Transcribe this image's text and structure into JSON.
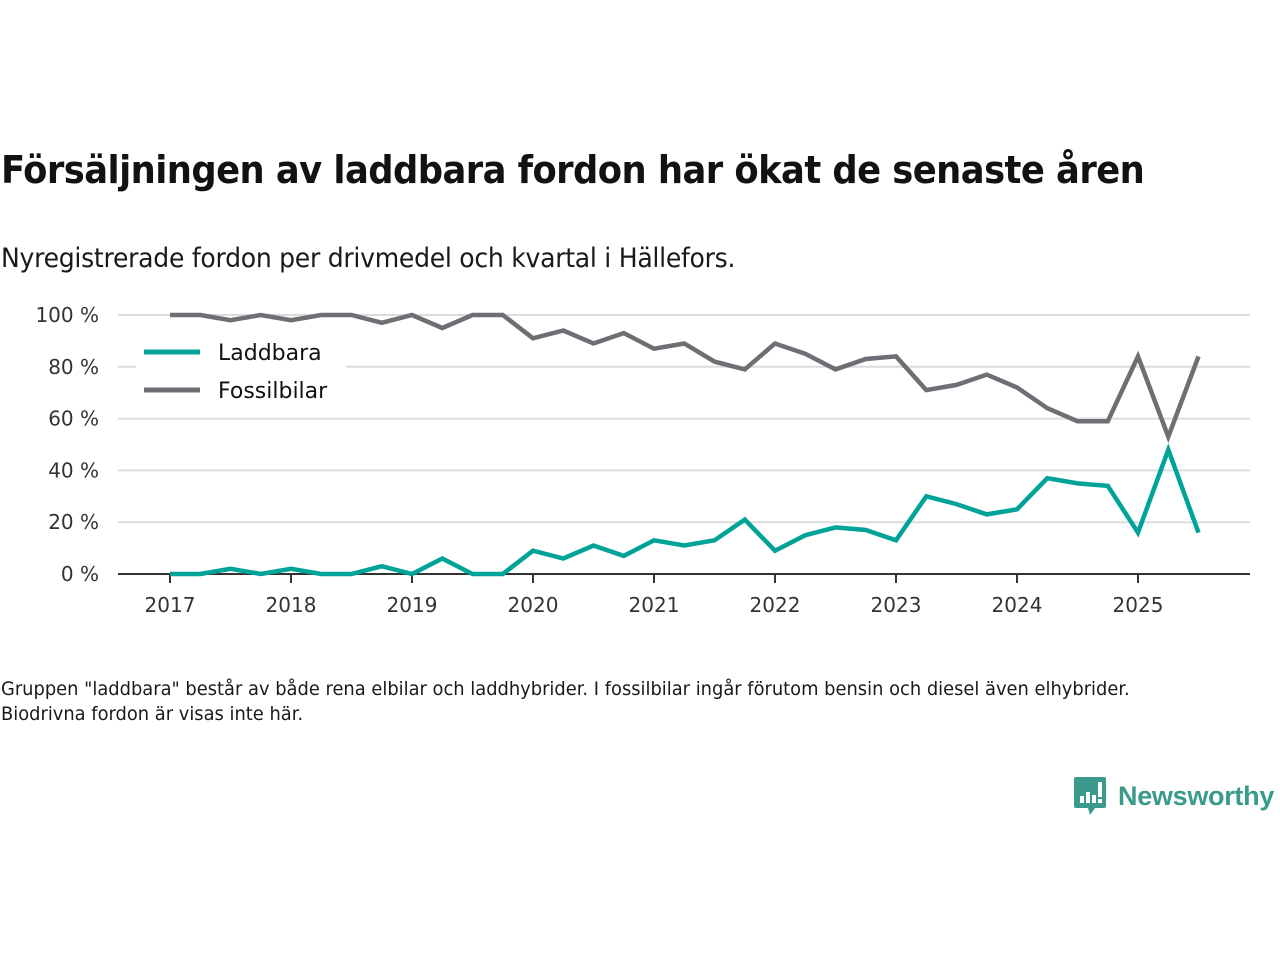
{
  "header": {
    "title": "Försäljningen av laddbara fordon har ökat de senaste åren",
    "subtitle": "Nyregistrerade fordon per drivmedel och kvartal i Hällefors."
  },
  "footer": {
    "note": "Gruppen \"laddbara\" består av både rena elbilar och laddhybrider. I fossilbilar ingår förutom bensin och diesel även elhybrider. Biodrivna fordon är visas inte här.",
    "brand": "Newsworthy",
    "brand_icon": "bar-chart-speech-bubble-icon",
    "brand_color": "#3a9b8d"
  },
  "chart_data": {
    "type": "line",
    "title": "Försäljningen av laddbara fordon har ökat de senaste åren",
    "subtitle": "Nyregistrerade fordon per drivmedel och kvartal i Hällefors.",
    "xlabel": "",
    "ylabel": "",
    "x": [
      "2017Q1",
      "2017Q2",
      "2017Q3",
      "2017Q4",
      "2018Q1",
      "2018Q2",
      "2018Q3",
      "2018Q4",
      "2019Q1",
      "2019Q2",
      "2019Q3",
      "2019Q4",
      "2020Q1",
      "2020Q2",
      "2020Q3",
      "2020Q4",
      "2021Q1",
      "2021Q2",
      "2021Q3",
      "2021Q4",
      "2022Q1",
      "2022Q2",
      "2022Q3",
      "2022Q4",
      "2023Q1",
      "2023Q2",
      "2023Q3",
      "2023Q4",
      "2024Q1",
      "2024Q2",
      "2024Q3",
      "2024Q4",
      "2025Q1",
      "2025Q2",
      "2025Q3"
    ],
    "x_tick_labels": [
      "2017",
      "2018",
      "2019",
      "2020",
      "2021",
      "2022",
      "2023",
      "2024",
      "2025"
    ],
    "y_tick_values": [
      0,
      20,
      40,
      60,
      80,
      100
    ],
    "y_tick_labels": [
      "0 %",
      "20 %",
      "40 %",
      "60 %",
      "80 %",
      "100 %"
    ],
    "ylim": [
      0,
      100
    ],
    "grid": true,
    "legend_position": "top-left",
    "series": [
      {
        "name": "Laddbara",
        "color": "#00a398",
        "values": [
          0,
          0,
          2,
          0,
          2,
          0,
          0,
          3,
          0,
          6,
          0,
          0,
          9,
          6,
          11,
          7,
          13,
          11,
          13,
          21,
          9,
          15,
          18,
          17,
          13,
          30,
          27,
          23,
          25,
          37,
          35,
          34,
          16,
          48,
          16
        ]
      },
      {
        "name": "Fossilbilar",
        "color": "#6e6e74",
        "values": [
          100,
          100,
          98,
          100,
          98,
          100,
          100,
          97,
          100,
          95,
          100,
          100,
          91,
          94,
          89,
          93,
          87,
          89,
          82,
          79,
          89,
          85,
          79,
          83,
          84,
          71,
          73,
          77,
          72,
          64,
          59,
          59,
          84,
          53,
          84
        ]
      }
    ]
  }
}
